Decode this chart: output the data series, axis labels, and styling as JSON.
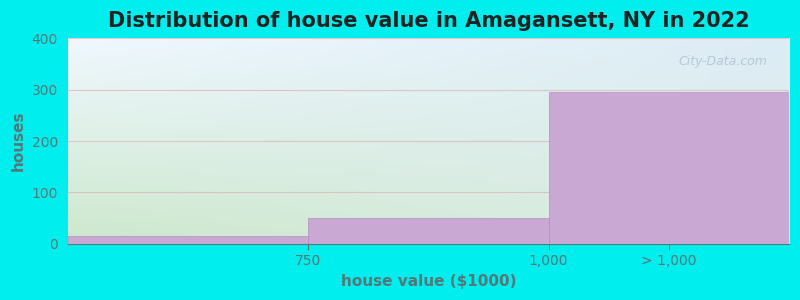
{
  "categories": [
    "750",
    "1,000",
    "> 1,000"
  ],
  "values": [
    15,
    50,
    295
  ],
  "bar_color": "#C9A8D4",
  "bar_edge_color": "#B090BC",
  "title": "Distribution of house value in Amagansett, NY in 2022",
  "xlabel": "house value ($1000)",
  "ylabel": "houses",
  "ylim": [
    0,
    400
  ],
  "yticks": [
    0,
    100,
    200,
    300,
    400
  ],
  "background_outer": "#00EEEE",
  "background_plot_tl": "#F0F8FF",
  "background_plot_tr": "#E8F0F8",
  "background_plot_bl": "#DDEEDD",
  "background_plot_br": "#E8EEE8",
  "grid_color": "#DDAAAA",
  "grid_alpha": 0.6,
  "watermark": "City-Data.com",
  "title_fontsize": 15,
  "axis_label_fontsize": 11,
  "tick_label_fontsize": 10,
  "tick_color": "#557777"
}
